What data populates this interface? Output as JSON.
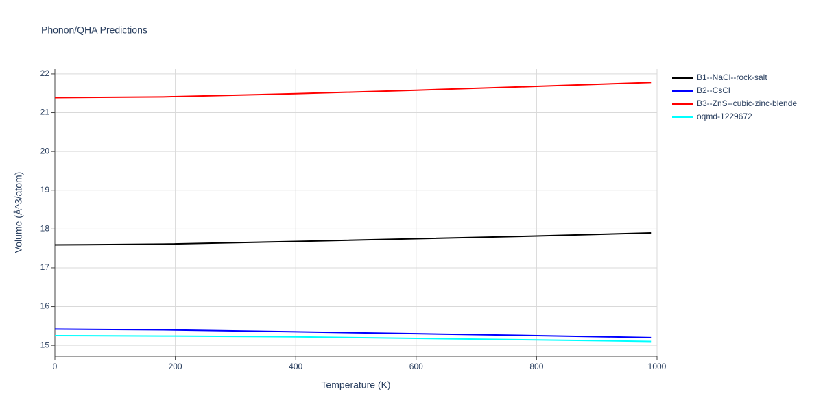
{
  "chart_data": {
    "type": "line",
    "title": "Phonon/QHA Predictions",
    "x_label": "Temperature (K)",
    "y_label": "Volume (Å^3/atom)",
    "x": [
      0,
      180,
      400,
      600,
      800,
      990
    ],
    "series": [
      {
        "name": "B1--NaCl--rock-salt",
        "color": "#000000",
        "values": [
          17.59,
          17.61,
          17.68,
          17.75,
          17.82,
          17.9
        ]
      },
      {
        "name": "B2--CsCl",
        "color": "#0000ff",
        "values": [
          15.42,
          15.4,
          15.35,
          15.3,
          15.25,
          15.2
        ]
      },
      {
        "name": "B3--ZnS--cubic-zinc-blende",
        "color": "#ff0000",
        "values": [
          21.39,
          21.41,
          21.49,
          21.58,
          21.68,
          21.78
        ]
      },
      {
        "name": "oqmd-1229672",
        "color": "#00ffff",
        "values": [
          15.25,
          15.24,
          15.22,
          15.18,
          15.14,
          15.1
        ]
      }
    ],
    "xlim": [
      0,
      1000
    ],
    "xticks": [
      0,
      200,
      400,
      600,
      800,
      1000
    ],
    "ylim": [
      14.72,
      22.14
    ],
    "yticks": [
      15,
      16,
      17,
      18,
      19,
      20,
      21,
      22
    ],
    "grid": true,
    "legend": "right"
  }
}
